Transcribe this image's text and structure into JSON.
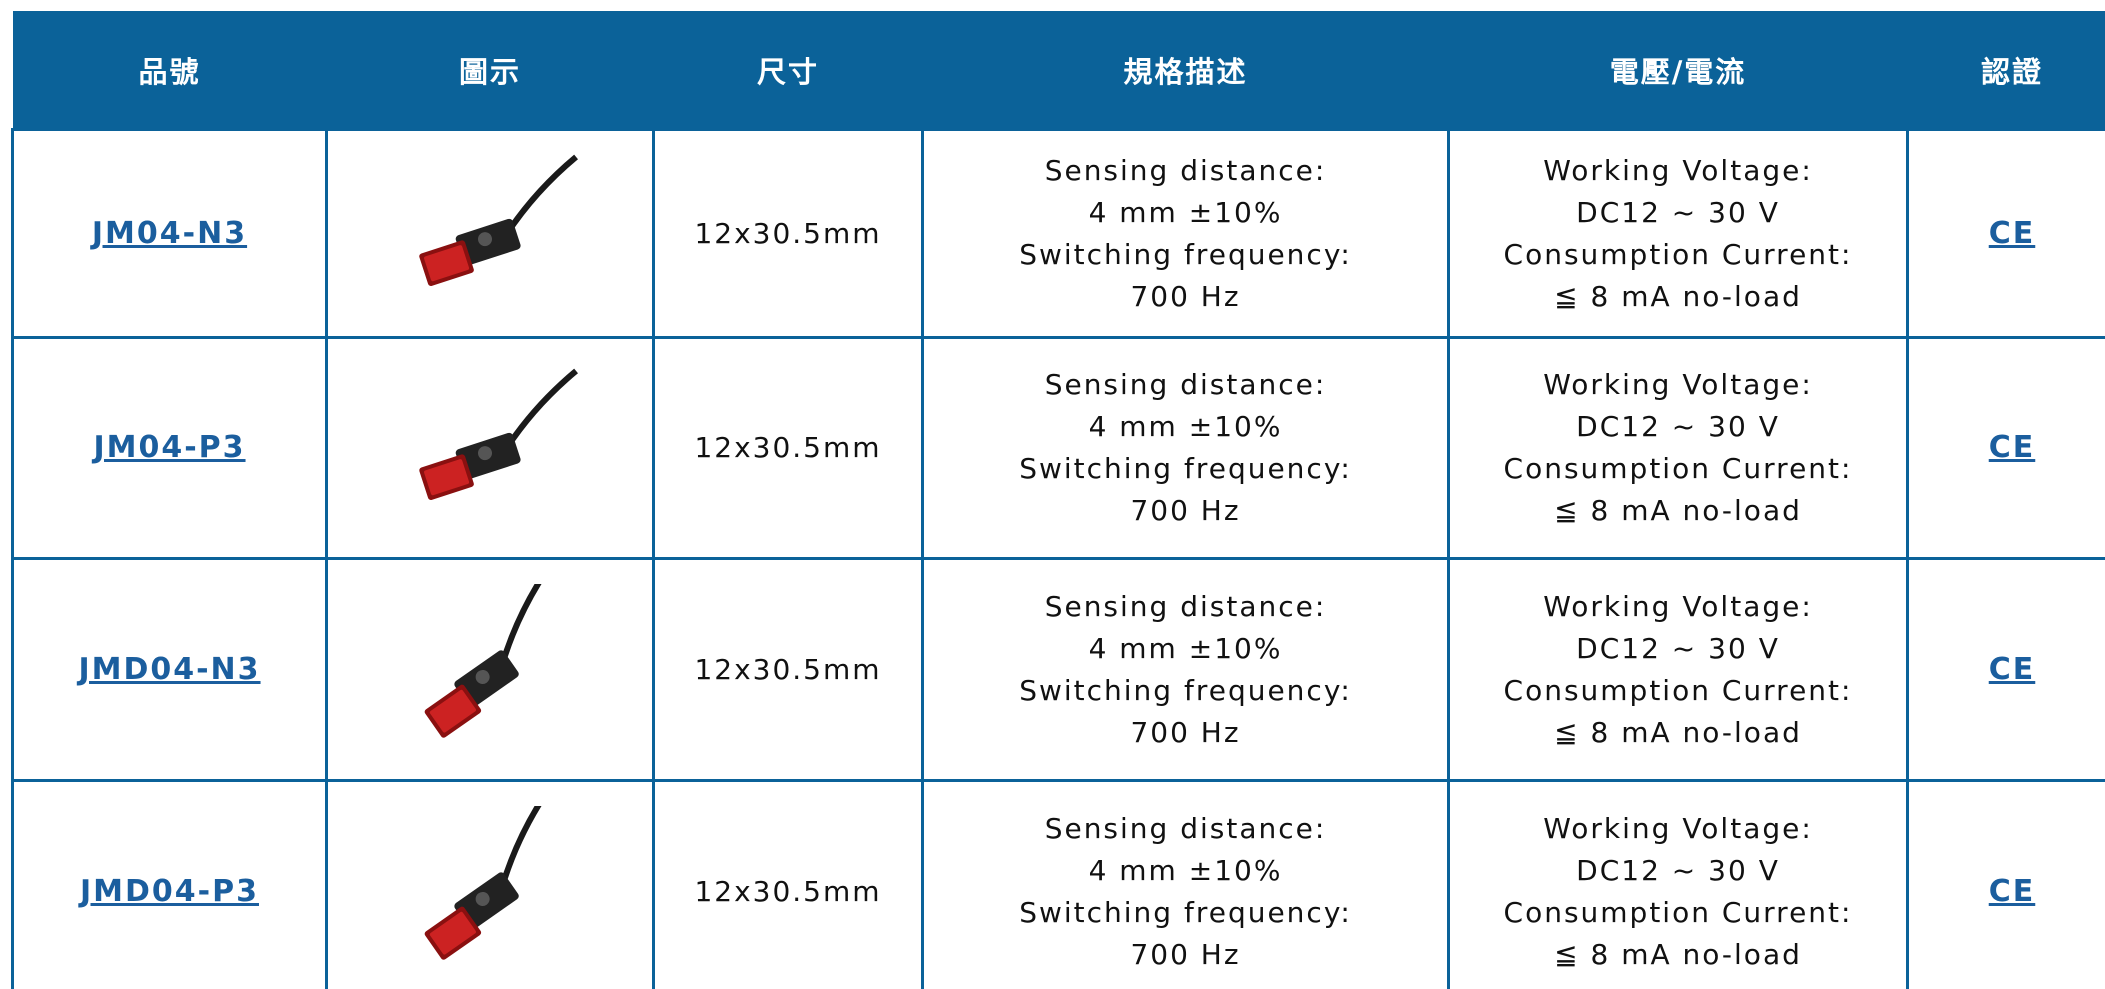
{
  "header": [
    "品號",
    "圖示",
    "尺寸",
    "規格描述",
    "電壓/電流",
    "認證"
  ],
  "rows": [
    {
      "model": "JM04-N3",
      "size": "12x30.5mm",
      "spec": [
        "Sensing distance:",
        "4 mm ±10%",
        "Switching frequency:",
        "700 Hz"
      ],
      "power": [
        "Working Voltage:",
        "DC12 ~ 30 V",
        "Consumption Current:",
        "≦ 8 mA no-load"
      ],
      "cert": "CE"
    },
    {
      "model": "JM04-P3",
      "size": "12x30.5mm",
      "spec": [
        "Sensing distance:",
        "4 mm ±10%",
        "Switching frequency:",
        "700 Hz"
      ],
      "power": [
        "Working Voltage:",
        "DC12 ~ 30 V",
        "Consumption Current:",
        "≦ 8 mA no-load"
      ],
      "cert": "CE"
    },
    {
      "model": "JMD04-N3",
      "size": "12x30.5mm",
      "spec": [
        "Sensing distance:",
        "4 mm ±10%",
        "Switching frequency:",
        "700 Hz"
      ],
      "power": [
        "Working Voltage:",
        "DC12 ~ 30 V",
        "Consumption Current:",
        "≦ 8 mA no-load"
      ],
      "cert": "CE"
    },
    {
      "model": "JMD04-P3",
      "size": "12x30.5mm",
      "spec": [
        "Sensing distance:",
        "4 mm ±10%",
        "Switching frequency:",
        "700 Hz"
      ],
      "power": [
        "Working Voltage:",
        "DC12 ~ 30 V",
        "Consumption Current:",
        "≦ 8 mA no-load"
      ],
      "cert": "CE"
    }
  ]
}
